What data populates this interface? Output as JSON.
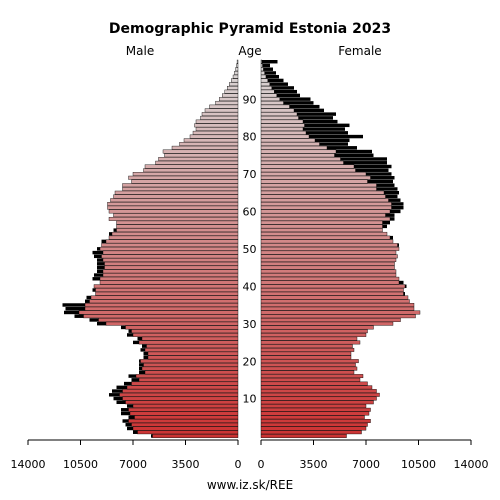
{
  "chart_data": {
    "type": "population-pyramid",
    "title": "Demographic Pyramid Estonia 2023",
    "left_label": "Male",
    "center_label": "Age",
    "right_label": "Female",
    "source": "www.iz.sk/REE",
    "x_ticks_left": [
      "14000",
      "10500",
      "7000",
      "3500",
      "0"
    ],
    "x_ticks_right": [
      "0",
      "3500",
      "7000",
      "10500",
      "14000"
    ],
    "x_tick_values": [
      14000,
      10500,
      7000,
      3500,
      0
    ],
    "age_ticks": [
      10,
      20,
      30,
      40,
      50,
      60,
      70,
      80,
      90
    ],
    "xlim": [
      0,
      14000
    ],
    "age_range": [
      0,
      100
    ],
    "colors": {
      "bar_young": "#cc3333",
      "bar_old": "#d9d9d9",
      "gender_excess": "#000000",
      "outline": "#000000"
    },
    "male": [
      5800,
      7000,
      7400,
      7500,
      7700,
      7300,
      7800,
      7800,
      7400,
      8100,
      8300,
      8600,
      8400,
      8100,
      7600,
      7100,
      7300,
      6600,
      6600,
      6600,
      6600,
      6300,
      6300,
      6500,
      6400,
      7000,
      6700,
      7400,
      7300,
      7800,
      9400,
      9900,
      10900,
      11600,
      11500,
      11700,
      10200,
      10100,
      9500,
      9700,
      9600,
      9200,
      9700,
      9600,
      9400,
      9400,
      9400,
      9400,
      9600,
      9700,
      9400,
      9100,
      9100,
      8600,
      8600,
      8300,
      8100,
      8100,
      8600,
      8300,
      8600,
      8700,
      8700,
      8500,
      8300,
      8200,
      7700,
      7700,
      7100,
      7300,
      7000,
      6300,
      6200,
      5500,
      5300,
      4900,
      5000,
      4400,
      3900,
      3600,
      3200,
      3000,
      2800,
      2900,
      2800,
      2500,
      2400,
      2200,
      1900,
      1500,
      1250,
      1050,
      880,
      720,
      580,
      450,
      330,
      240,
      160,
      100,
      60
    ],
    "female": [
      5700,
      6700,
      7000,
      7100,
      7300,
      6900,
      7200,
      7300,
      7000,
      7500,
      7700,
      7900,
      7700,
      7400,
      7100,
      6600,
      6800,
      6200,
      6400,
      6300,
      6500,
      6000,
      6000,
      6200,
      6100,
      6600,
      6400,
      7000,
      7100,
      7500,
      8800,
      9300,
      10300,
      10600,
      10200,
      10200,
      9900,
      9800,
      9600,
      9500,
      9700,
      9500,
      9200,
      9000,
      9000,
      8900,
      8900,
      9000,
      9100,
      9000,
      9200,
      9200,
      8800,
      8800,
      8400,
      8100,
      8400,
      8600,
      8900,
      8900,
      9300,
      9500,
      9500,
      9300,
      9100,
      9200,
      9100,
      8900,
      8800,
      8900,
      8700,
      8500,
      8700,
      8400,
      8400,
      7500,
      7400,
      6400,
      5800,
      5900,
      6800,
      5800,
      5600,
      5900,
      5100,
      4800,
      5000,
      4200,
      3900,
      3500,
      3300,
      2600,
      2400,
      2200,
      1800,
      1500,
      1200,
      1000,
      800,
      600,
      1100
    ]
  }
}
